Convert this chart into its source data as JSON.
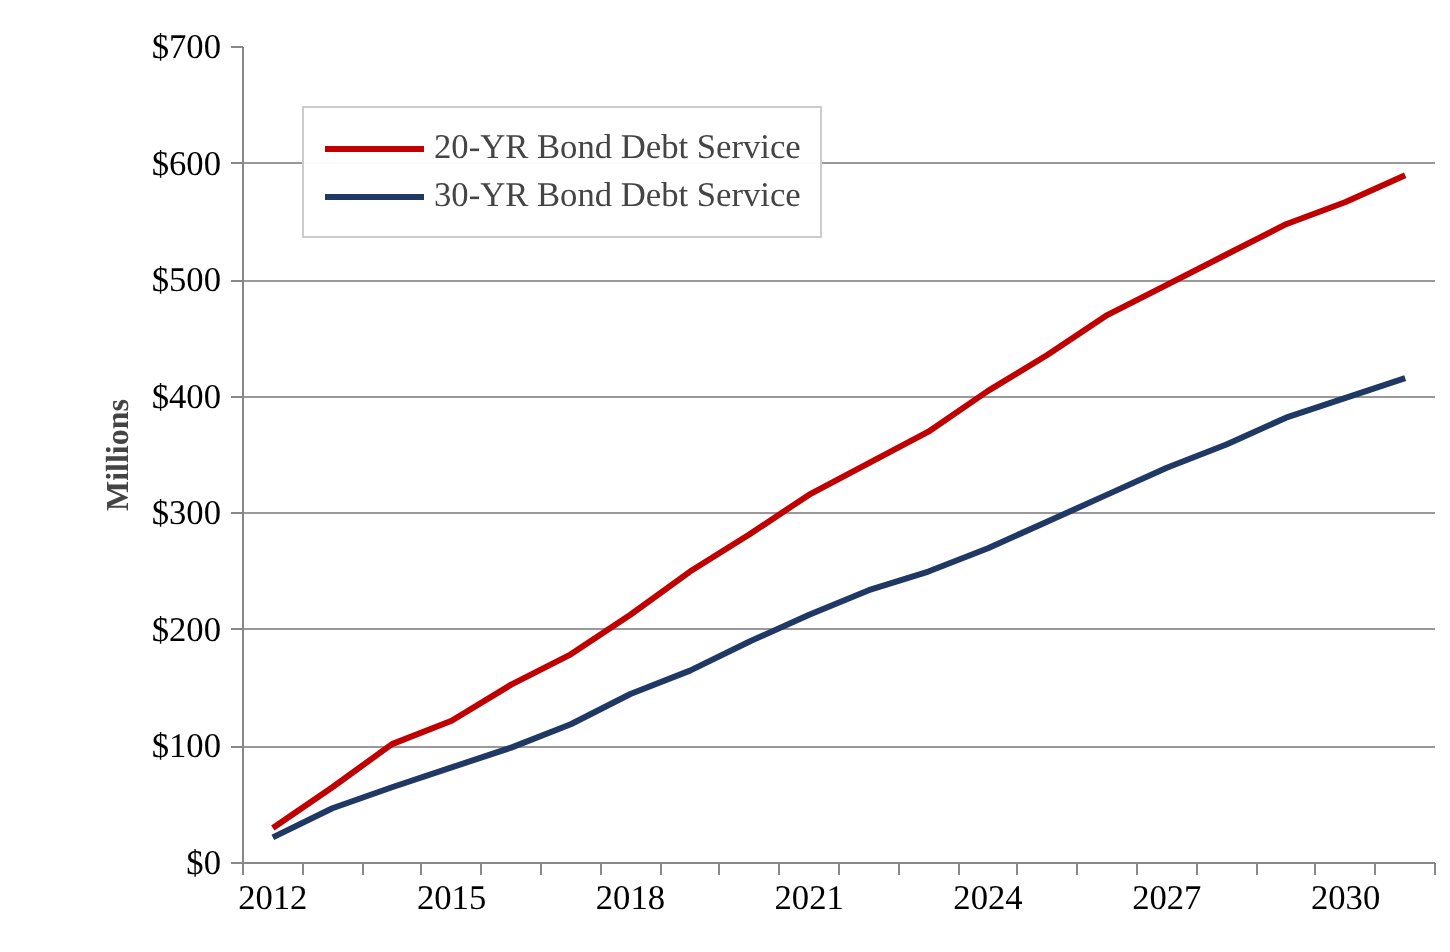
{
  "chart_data": {
    "type": "line",
    "ylabel": "Millions",
    "categories": [
      "2012",
      null,
      null,
      "2015",
      null,
      null,
      "2018",
      null,
      null,
      "2021",
      null,
      null,
      "2024",
      null,
      null,
      "2027",
      null,
      null,
      "2030",
      null
    ],
    "series": [
      {
        "name": "20-YR Bond Debt Service",
        "color": "#c00000",
        "values": [
          30,
          65,
          102,
          122,
          153,
          179,
          213,
          250,
          282,
          316,
          343,
          370,
          405,
          436,
          470,
          496,
          522,
          548,
          567,
          590
        ]
      },
      {
        "name": "30-YR Bond Debt Service",
        "color": "#1f3864",
        "values": [
          22,
          47,
          65,
          82,
          99,
          119,
          145,
          165,
          190,
          213,
          234,
          250,
          270,
          293,
          316,
          339,
          359,
          382,
          399,
          416
        ]
      }
    ],
    "ylim": [
      0,
      700
    ],
    "yticks": [
      {
        "value": 0,
        "label": "$0"
      },
      {
        "value": 100,
        "label": "$100"
      },
      {
        "value": 200,
        "label": "$200"
      },
      {
        "value": 300,
        "label": "$300"
      },
      {
        "value": 400,
        "label": "$400"
      },
      {
        "value": 500,
        "label": "$500"
      },
      {
        "value": 600,
        "label": "$600"
      },
      {
        "value": 700,
        "label": "$700"
      }
    ],
    "grid": "y",
    "legend": "top left",
    "marker": "none",
    "line_style": "solid"
  }
}
